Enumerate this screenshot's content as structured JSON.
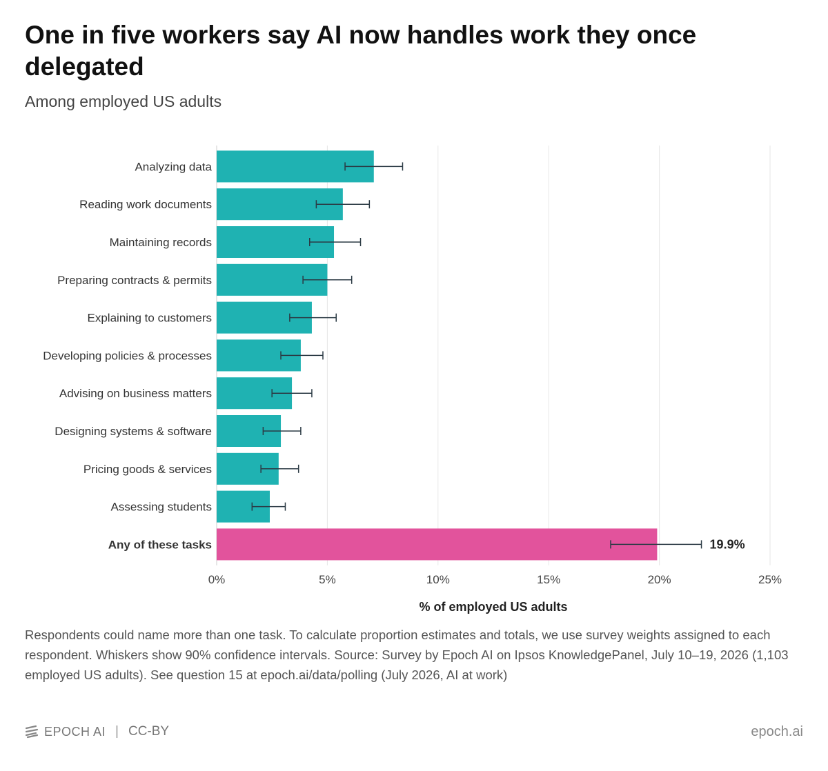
{
  "title": "One in five workers say AI now handles work they once delegated",
  "subtitle": "Among employed US adults",
  "notes": "Respondents could name more than one task. To calculate proportion estimates and totals, we use survey weights assigned to each respondent. Whiskers show 90% confidence intervals. Source: Survey by Epoch AI on Ipsos KnowledgePanel, July 10–19, 2026 (1,103 employed US adults). See question 15 at epoch.ai/data/polling (July 2026, AI at work)",
  "footer": {
    "brand": "EPOCH AI",
    "separator": "|",
    "license": "CC-BY",
    "site": "epoch.ai"
  },
  "colors": {
    "bar": "#1fb2b2",
    "highlight": "#e2539c",
    "whisker": "#2b3a44",
    "grid": "#e6e6e6"
  },
  "chart_data": {
    "type": "bar",
    "orientation": "horizontal",
    "xlabel": "% of employed US adults",
    "xlim": [
      0,
      25
    ],
    "xticks": [
      0,
      5,
      10,
      15,
      20,
      25
    ],
    "xtick_labels": [
      "0%",
      "5%",
      "10%",
      "15%",
      "20%",
      "25%"
    ],
    "grid": true,
    "categories": [
      "Analyzing data",
      "Reading work documents",
      "Maintaining records",
      "Preparing contracts & permits",
      "Explaining to customers",
      "Developing policies & processes",
      "Advising on business matters",
      "Designing systems & software",
      "Pricing goods & services",
      "Assessing students",
      "Any of these tasks"
    ],
    "values": [
      7.1,
      5.7,
      5.3,
      5.0,
      4.3,
      3.8,
      3.4,
      2.9,
      2.8,
      2.4,
      19.9
    ],
    "ci_low": [
      5.8,
      4.5,
      4.2,
      3.9,
      3.3,
      2.9,
      2.5,
      2.1,
      2.0,
      1.6,
      17.8
    ],
    "ci_high": [
      8.4,
      6.9,
      6.5,
      6.1,
      5.4,
      4.8,
      4.3,
      3.8,
      3.7,
      3.1,
      21.9
    ],
    "highlight_index": 10,
    "value_labels": [
      "",
      "",
      "",
      "",
      "",
      "",
      "",
      "",
      "",
      "",
      "19.9%"
    ]
  }
}
